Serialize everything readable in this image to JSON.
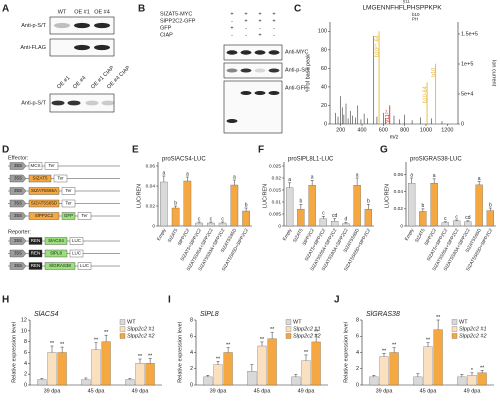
{
  "panel_labels": [
    "A",
    "B",
    "C",
    "D",
    "E",
    "F",
    "G",
    "H",
    "I",
    "J"
  ],
  "panel_a": {
    "blot1": {
      "lanes": [
        "WT",
        "OE #1",
        "OE #4"
      ],
      "antibodies": [
        "Anti-p-S/T",
        "Anti-FLAG"
      ]
    },
    "blot2": {
      "lanes": [
        "OE #1",
        "OE #4",
        "OE #1 CIAP",
        "OE #4 CIAP"
      ],
      "antibodies": [
        "Anti-p-S/T"
      ]
    }
  },
  "panel_b": {
    "rows": [
      {
        "label": "SIZAT5-MYC",
        "signs": [
          "+",
          "+",
          "+",
          "+"
        ]
      },
      {
        "label": "SlPP2C2-GFP",
        "signs": [
          "-",
          "+",
          "+",
          "+"
        ]
      },
      {
        "label": "GFP",
        "signs": [
          "+",
          "-",
          "-",
          "-"
        ]
      },
      {
        "label": "CIAP",
        "signs": [
          "-",
          "-",
          "+",
          "-"
        ]
      }
    ],
    "antibodies": [
      "Anti-MYC",
      "Anti-p-S/T",
      "Anti-GFP"
    ]
  },
  "panel_d": {
    "effector_title": "Effector:",
    "effectors": [
      [
        {
          "label": "35S",
          "color": "#9e9e9e"
        },
        {
          "label": "MCS",
          "color": "#ffffff"
        },
        {
          "label": "Ter",
          "color": "#ffffff"
        }
      ],
      [
        {
          "label": "35S",
          "color": "#9e9e9e"
        },
        {
          "label": "SIZAT5",
          "color": "#f5a742"
        },
        {
          "label": "Ter",
          "color": "#ffffff"
        }
      ],
      [
        {
          "label": "35S",
          "color": "#9e9e9e"
        },
        {
          "label": "SIZAT5S65A",
          "color": "#f5a742"
        },
        {
          "label": "Ter",
          "color": "#ffffff"
        }
      ],
      [
        {
          "label": "35S",
          "color": "#9e9e9e"
        },
        {
          "label": "SIZAT5S65D",
          "color": "#f5a742"
        },
        {
          "label": "Ter",
          "color": "#ffffff"
        }
      ],
      [
        {
          "label": "35S",
          "color": "#9e9e9e"
        },
        {
          "label": "SlPP2C2",
          "color": "#f5a742"
        },
        {
          "label": "GFP",
          "color": "#9be07a"
        },
        {
          "label": "Ter",
          "color": "#ffffff"
        }
      ]
    ],
    "reporter_title": "Reporter:",
    "reporters": [
      [
        {
          "label": "35S",
          "color": "#9e9e9e"
        },
        {
          "label": "REN",
          "color": "#222222"
        },
        {
          "label": "SlACS4",
          "color": "#9be07a"
        },
        {
          "label": "LUC",
          "color": "#ffffff"
        }
      ],
      [
        {
          "label": "35S",
          "color": "#9e9e9e"
        },
        {
          "label": "REN",
          "color": "#222222"
        },
        {
          "label": "SlPL8",
          "color": "#9be07a"
        },
        {
          "label": "LUC",
          "color": "#ffffff"
        }
      ],
      [
        {
          "label": "35S",
          "color": "#9e9e9e"
        },
        {
          "label": "REN",
          "color": "#222222"
        },
        {
          "label": "SlGRAS38",
          "color": "#9be07a"
        },
        {
          "label": "LUC",
          "color": "#ffffff"
        }
      ]
    ]
  },
  "chart_data": [
    {
      "type": "spectrum",
      "sequence": "LMGENNFHFLPHSPPKPK",
      "fragments": [
        "y11",
        "b10",
        "PH"
      ],
      "x_label": "m/z",
      "y_label": "% of base peak",
      "y2_label": "Ion current",
      "x": [
        150,
        175,
        200,
        215,
        230,
        250,
        270,
        290,
        310,
        340,
        360,
        390,
        420,
        450,
        510,
        540,
        600,
        620,
        700,
        750,
        800,
        870,
        950,
        1050,
        1150
      ],
      "values": [
        12,
        8,
        30,
        18,
        10,
        22,
        6,
        14,
        9,
        7,
        20,
        5,
        11,
        6,
        95,
        8,
        12,
        6,
        9,
        5,
        10,
        4,
        7,
        6,
        3
      ],
      "color": "#333333",
      "labeled_peaks": [
        {
          "x": 560,
          "value": 100,
          "label": "b10²⁺-64",
          "color": "#e8b830"
        },
        {
          "x": 660,
          "value": 20,
          "label": "y11²⁺",
          "color": "#d0302a"
        },
        {
          "x": 1010,
          "value": 45,
          "label": "b10-64",
          "color": "#e8b830"
        },
        {
          "x": 1090,
          "value": 65,
          "label": "b10",
          "color": "#e8b830"
        }
      ],
      "xlim": [
        100,
        1300
      ],
      "xticks": [
        200,
        400,
        600,
        800,
        1000,
        1200
      ],
      "ylim": [
        0,
        110
      ],
      "yticks": [
        0,
        20,
        40,
        60,
        80,
        100
      ],
      "y2lim": [
        0,
        170000
      ],
      "y2ticks": [
        0,
        {
          "value": 50000,
          "label": "5e+4"
        },
        {
          "value": 100000,
          "label": "1e+5"
        },
        {
          "value": 150000,
          "label": "1.5e+5"
        }
      ]
    },
    {
      "type": "bar",
      "title": "proSlACS4-LUC",
      "y_label": "LUC/REN",
      "categories": [
        "Empty",
        "SIZAT5",
        "SlPP2C2",
        "SIZAT5+SlPP2C2",
        "SIZAT5S65A+SlPP2C2",
        "SIZAT5S83A+SlPP2C2",
        "SIZAT5S65D",
        "SIZAT5S65D+SlPP2C2"
      ],
      "values": [
        0.044,
        0.018,
        0.045,
        0.003,
        0.003,
        0.003,
        0.041,
        0.015
      ],
      "errors": [
        0.006,
        0.002,
        0.004,
        0.001,
        0.001,
        0.001,
        0.005,
        0.003
      ],
      "letters": [
        "a",
        "b",
        "a",
        "c",
        "c",
        "c",
        "a",
        "b"
      ],
      "colors": [
        "#d9d9d9",
        "#f5a742",
        "#f5a742",
        "#d9d9d9",
        "#d9d9d9",
        "#d9d9d9",
        "#f5a742",
        "#f5a742"
      ],
      "ylim": [
        0,
        0.06
      ],
      "yticks": [
        0,
        0.02,
        0.04,
        0.06
      ]
    },
    {
      "type": "bar",
      "title": "proSlPL8L1-LUC",
      "y_label": "LUC/REN",
      "categories": [
        "Empty",
        "SIZAT5",
        "SlPP2C2",
        "SIZAT5+SlPP2C2",
        "SIZAT5S65A+SlPP2C2",
        "SIZAT5S83A+SlPP2C2",
        "SIZAT5S65D",
        "SIZAT5S65D+SlPP2C2"
      ],
      "values": [
        0.016,
        0.007,
        0.017,
        0.003,
        0.002,
        0.001,
        0.017,
        0.007
      ],
      "errors": [
        0.002,
        0.002,
        0.002,
        0.001,
        0.001,
        0.0005,
        0.003,
        0.002
      ],
      "letters": [
        "a",
        "b",
        "a",
        "c",
        "cd",
        "d",
        "a",
        "b"
      ],
      "colors": [
        "#d9d9d9",
        "#f5a742",
        "#f5a742",
        "#d9d9d9",
        "#d9d9d9",
        "#d9d9d9",
        "#f5a742",
        "#f5a742"
      ],
      "ylim": [
        0,
        0.025
      ],
      "yticks": [
        0,
        0.005,
        0.01,
        0.015,
        0.02,
        0.025
      ]
    },
    {
      "type": "bar",
      "title": "proSlGRAS38-LUC",
      "y_label": "LUC/REN",
      "categories": [
        "Empty",
        "SIZAT5",
        "SlPP2C2",
        "SIZAT5+SlPP2C2",
        "SIZAT5S65A+SlPP2C2",
        "SIZAT5S83A+SlPP2C2",
        "SIZAT5S65D",
        "SIZAT5S65D+SlPP2C2"
      ],
      "values": [
        0.05,
        0.017,
        0.05,
        0.004,
        0.006,
        0.005,
        0.048,
        0.018
      ],
      "errors": [
        0.006,
        0.003,
        0.005,
        0.001,
        0.001,
        0.001,
        0.004,
        0.003
      ],
      "letters": [
        "a",
        "b",
        "a",
        "c",
        "c",
        "cd",
        "a",
        "b"
      ],
      "colors": [
        "#d9d9d9",
        "#f5a742",
        "#f5a742",
        "#d9d9d9",
        "#d9d9d9",
        "#d9d9d9",
        "#f5a742",
        "#f5a742"
      ],
      "ylim": [
        0,
        0.07
      ],
      "yticks": [
        0,
        0.02,
        0.04,
        0.06
      ]
    },
    {
      "type": "grouped_bar",
      "title": "SlACS4",
      "y_label": "Relative expression level",
      "categories": [
        "39 dpa",
        "45 dpa",
        "49 dpa"
      ],
      "series": [
        {
          "name": "WT",
          "color": "#d9d9d9",
          "values": [
            1,
            1,
            1
          ],
          "errors": [
            0.2,
            0.3,
            0.2
          ]
        },
        {
          "name": "Slpp2c2 #1",
          "color": "#fbe0c0",
          "values": [
            6,
            6.5,
            4
          ],
          "errors": [
            1.2,
            1.3,
            0.8
          ],
          "sig": [
            "**",
            "**",
            "**"
          ]
        },
        {
          "name": "Slpp2c2 #2",
          "color": "#f5a742",
          "values": [
            6,
            8,
            4
          ],
          "errors": [
            1.0,
            1.2,
            0.9
          ],
          "sig": [
            "**",
            "**",
            "**"
          ]
        }
      ],
      "ylim": [
        0,
        12
      ],
      "yticks": [
        0,
        2,
        4,
        6,
        8,
        10,
        12
      ]
    },
    {
      "type": "grouped_bar",
      "title": "SlPL8",
      "y_label": "Relative expression level",
      "categories": [
        "39 dpa",
        "45 dpa",
        "49 dpa"
      ],
      "series": [
        {
          "name": "WT",
          "color": "#d9d9d9",
          "values": [
            1,
            1.7,
            1
          ],
          "errors": [
            0.2,
            0.8,
            0.3
          ]
        },
        {
          "name": "Slpp2c2 #1",
          "color": "#fbe0c0",
          "values": [
            2.5,
            4.8,
            3
          ],
          "errors": [
            0.4,
            0.5,
            0.7
          ],
          "sig": [
            "**",
            "**",
            "**"
          ]
        },
        {
          "name": "Slpp2c2 #2",
          "color": "#f5a742",
          "values": [
            4,
            5.7,
            5.3
          ],
          "errors": [
            0.6,
            0.8,
            0.9
          ],
          "sig": [
            "**",
            "**",
            "**"
          ]
        }
      ],
      "ylim": [
        0,
        8
      ],
      "yticks": [
        0,
        2,
        4,
        6,
        8
      ]
    },
    {
      "type": "grouped_bar",
      "title": "SlGRAS38",
      "y_label": "Relative expression level",
      "categories": [
        "39 dpa",
        "45 dpa",
        "49 dpa"
      ],
      "series": [
        {
          "name": "WT",
          "color": "#d9d9d9",
          "values": [
            1,
            1,
            1
          ],
          "errors": [
            0.2,
            0.4,
            0.3
          ]
        },
        {
          "name": "Slpp2c2 #1",
          "color": "#fbe0c0",
          "values": [
            3.5,
            4.7,
            1.2
          ],
          "errors": [
            0.4,
            0.5,
            0.3
          ],
          "sig": [
            "**",
            "**",
            "*"
          ]
        },
        {
          "name": "Slpp2c2 #2",
          "color": "#f5a742",
          "values": [
            4,
            6.8,
            1.5
          ],
          "errors": [
            0.6,
            1.2,
            0.3
          ],
          "sig": [
            "**",
            "**",
            "**"
          ]
        }
      ],
      "ylim": [
        0,
        8
      ],
      "yticks": [
        0,
        2,
        4,
        6,
        8
      ]
    }
  ]
}
